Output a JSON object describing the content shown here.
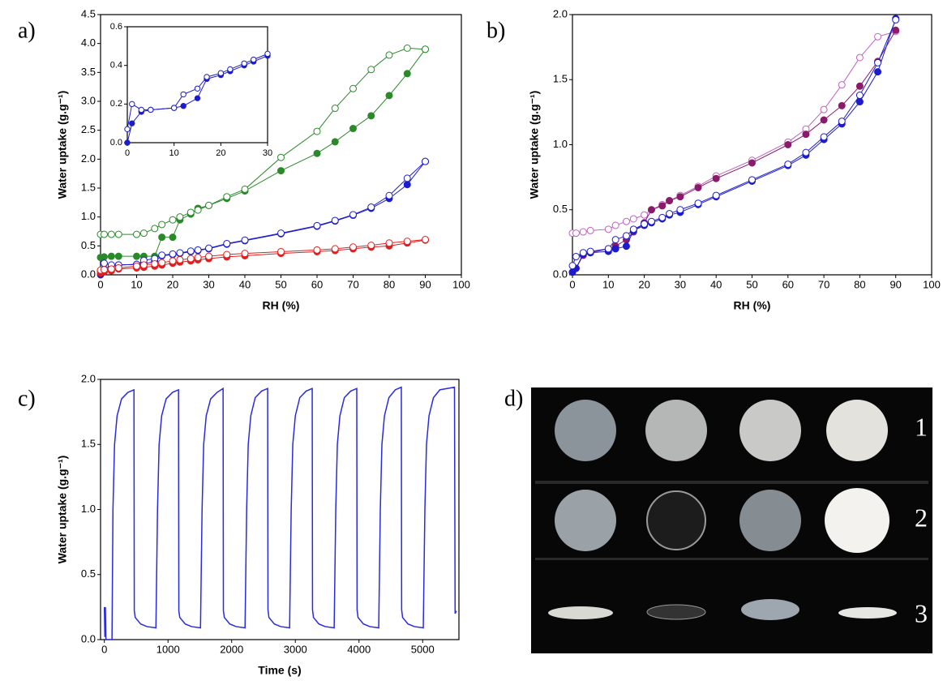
{
  "chart_data": [
    {
      "type": "line",
      "label": "a)",
      "xlabel": "RH (%)",
      "ylabel": "Water uptake (g.g⁻¹)",
      "x": [
        0,
        1,
        3,
        5,
        10,
        12,
        15,
        17,
        20,
        22,
        25,
        27,
        30,
        35,
        40,
        50,
        60,
        65,
        70,
        75,
        80,
        85,
        90
      ],
      "series": [
        {
          "color": "#2a8a2a",
          "marker": "filled",
          "values": [
            0.3,
            0.31,
            0.32,
            0.32,
            0.32,
            0.32,
            0.32,
            0.65,
            0.65,
            0.95,
            1.05,
            1.15,
            1.2,
            1.32,
            1.45,
            1.8,
            2.1,
            2.3,
            2.53,
            2.75,
            3.1,
            3.48,
            3.9
          ]
        },
        {
          "color": "#2a8a2a",
          "marker": "open",
          "values": [
            0.7,
            0.7,
            0.7,
            0.7,
            0.7,
            0.72,
            0.8,
            0.87,
            0.95,
            1.0,
            1.08,
            1.12,
            1.2,
            1.35,
            1.48,
            2.03,
            2.48,
            2.88,
            3.22,
            3.55,
            3.8,
            3.92,
            3.9
          ]
        },
        {
          "color": "#1c1ccc",
          "marker": "filled",
          "values": [
            0.0,
            0.1,
            0.16,
            0.17,
            0.18,
            0.19,
            0.23,
            0.33,
            0.35,
            0.37,
            0.4,
            0.42,
            0.45,
            0.53,
            0.59,
            0.71,
            0.84,
            0.93,
            1.03,
            1.15,
            1.32,
            1.56,
            1.96
          ]
        },
        {
          "color": "#1c1ccc",
          "marker": "open",
          "values": [
            0.07,
            0.2,
            0.17,
            0.17,
            0.18,
            0.25,
            0.28,
            0.34,
            0.36,
            0.38,
            0.41,
            0.43,
            0.46,
            0.54,
            0.6,
            0.72,
            0.85,
            0.94,
            1.04,
            1.17,
            1.37,
            1.67,
            1.96
          ]
        },
        {
          "color": "#e02020",
          "marker": "filled",
          "values": [
            0.03,
            0.05,
            0.07,
            0.1,
            0.12,
            0.13,
            0.15,
            0.17,
            0.2,
            0.22,
            0.24,
            0.26,
            0.28,
            0.31,
            0.33,
            0.37,
            0.4,
            0.42,
            0.45,
            0.48,
            0.5,
            0.55,
            0.6
          ]
        },
        {
          "color": "#e02020",
          "marker": "open",
          "values": [
            0.08,
            0.09,
            0.1,
            0.12,
            0.15,
            0.17,
            0.19,
            0.21,
            0.24,
            0.26,
            0.28,
            0.3,
            0.32,
            0.35,
            0.37,
            0.4,
            0.43,
            0.45,
            0.48,
            0.51,
            0.55,
            0.58,
            0.61
          ]
        }
      ],
      "xlim": [
        0,
        100
      ],
      "ylim": [
        0,
        4.5
      ],
      "xticks": [
        0,
        10,
        20,
        30,
        40,
        50,
        60,
        70,
        80,
        90,
        100
      ],
      "yticks": [
        {
          "value": 0,
          "label": "0.0"
        },
        0.5,
        {
          "value": 1,
          "label": "1.0"
        },
        1.5,
        {
          "value": 2,
          "label": "2.0"
        },
        2.5,
        {
          "value": 3,
          "label": "3.0"
        },
        3.5,
        {
          "value": 4,
          "label": "4.0"
        },
        4.5
      ]
    },
    {
      "type": "line",
      "x": [
        0,
        1,
        3,
        5,
        10,
        12,
        15,
        17,
        20,
        22,
        25,
        27,
        30
      ],
      "series": [
        {
          "color": "#1c1ccc",
          "marker": "filled",
          "values": [
            0.0,
            0.1,
            0.16,
            0.17,
            0.18,
            0.19,
            0.23,
            0.33,
            0.35,
            0.37,
            0.4,
            0.42,
            0.45
          ]
        },
        {
          "color": "#1c1ccc",
          "marker": "open",
          "values": [
            0.07,
            0.2,
            0.17,
            0.17,
            0.18,
            0.25,
            0.28,
            0.34,
            0.36,
            0.38,
            0.41,
            0.43,
            0.46
          ]
        }
      ],
      "xlim": [
        0,
        30
      ],
      "ylim": [
        0,
        0.6
      ],
      "xticks": [
        0,
        10,
        20,
        30
      ],
      "yticks": [
        {
          "value": 0,
          "label": "0.0"
        },
        0.2,
        0.4,
        0.6
      ]
    },
    {
      "type": "line",
      "label": "b)",
      "xlabel": "RH (%)",
      "ylabel": "Water uptake (g.g⁻¹)",
      "x": [
        0,
        1,
        3,
        5,
        10,
        12,
        15,
        17,
        20,
        22,
        25,
        27,
        30,
        35,
        40,
        50,
        60,
        65,
        70,
        75,
        80,
        85,
        90
      ],
      "series": [
        {
          "color": "#c060c0",
          "marker": "open",
          "values": [
            0.32,
            0.32,
            0.33,
            0.34,
            0.35,
            0.38,
            0.41,
            0.43,
            0.46,
            0.5,
            0.54,
            0.57,
            0.61,
            0.68,
            0.76,
            0.88,
            1.02,
            1.12,
            1.27,
            1.46,
            1.67,
            1.83,
            1.87
          ]
        },
        {
          "color": "#8b1a6b",
          "marker": "filled",
          "values": [
            0.02,
            0.05,
            0.15,
            0.17,
            0.2,
            0.22,
            0.27,
            0.33,
            0.4,
            0.5,
            0.53,
            0.57,
            0.6,
            0.67,
            0.74,
            0.86,
            1.0,
            1.08,
            1.19,
            1.3,
            1.45,
            1.64,
            1.88
          ]
        },
        {
          "color": "#1c1ccc",
          "marker": "filled",
          "values": [
            0.02,
            0.05,
            0.16,
            0.17,
            0.18,
            0.2,
            0.22,
            0.34,
            0.38,
            0.4,
            0.43,
            0.46,
            0.48,
            0.54,
            0.6,
            0.72,
            0.84,
            0.92,
            1.04,
            1.16,
            1.33,
            1.56,
            1.97
          ]
        },
        {
          "color": "#1c1ccc",
          "marker": "open",
          "values": [
            0.07,
            0.14,
            0.17,
            0.18,
            0.2,
            0.27,
            0.3,
            0.35,
            0.39,
            0.41,
            0.44,
            0.47,
            0.5,
            0.55,
            0.61,
            0.73,
            0.85,
            0.94,
            1.06,
            1.18,
            1.38,
            1.63,
            1.96
          ]
        }
      ],
      "xlim": [
        0,
        100
      ],
      "ylim": [
        0,
        2
      ],
      "xticks": [
        0,
        10,
        20,
        30,
        40,
        50,
        60,
        70,
        80,
        90,
        100
      ],
      "yticks": [
        {
          "value": 0,
          "label": "0.0"
        },
        0.5,
        {
          "value": 1,
          "label": "1.0"
        },
        1.5,
        {
          "value": 2,
          "label": "2.0"
        }
      ]
    },
    {
      "type": "line",
      "label": "c)",
      "xlabel": "Time (s)",
      "ylabel": "Water uptake (g.g⁻¹)",
      "x": [
        0,
        8,
        16,
        25,
        120,
        135,
        160,
        200,
        270,
        370,
        465,
        470,
        485,
        570,
        670,
        810,
        835,
        860,
        900,
        970,
        1070,
        1165,
        1170,
        1185,
        1270,
        1370,
        1510,
        1535,
        1560,
        1600,
        1670,
        1770,
        1865,
        1870,
        1885,
        1970,
        2070,
        2210,
        2235,
        2260,
        2300,
        2370,
        2470,
        2565,
        2570,
        2585,
        2670,
        2770,
        2910,
        2935,
        2960,
        3000,
        3070,
        3170,
        3265,
        3270,
        3285,
        3370,
        3470,
        3610,
        3635,
        3660,
        3700,
        3770,
        3870,
        3965,
        3970,
        3985,
        4070,
        4170,
        4310,
        4335,
        4360,
        4400,
        4470,
        4570,
        4665,
        4670,
        4685,
        4770,
        4870,
        5010,
        5035,
        5060,
        5100,
        5170,
        5270,
        5500,
        5510,
        5530
      ],
      "series": [
        {
          "color": "#2a2ae0",
          "values": [
            0.25,
            0.02,
            0.25,
            0,
            0,
            1.0,
            1.5,
            1.72,
            1.85,
            1.9,
            1.92,
            0.22,
            0.17,
            0.12,
            0.1,
            0.09,
            1.0,
            1.5,
            1.72,
            1.85,
            1.9,
            1.92,
            0.22,
            0.17,
            0.12,
            0.1,
            0.09,
            1.0,
            1.5,
            1.72,
            1.85,
            1.9,
            1.93,
            0.22,
            0.17,
            0.12,
            0.1,
            0.09,
            1.0,
            1.5,
            1.72,
            1.86,
            1.91,
            1.93,
            0.23,
            0.17,
            0.12,
            0.1,
            0.09,
            1.0,
            1.5,
            1.72,
            1.86,
            1.91,
            1.93,
            0.23,
            0.17,
            0.12,
            0.1,
            0.09,
            1.0,
            1.5,
            1.72,
            1.86,
            1.91,
            1.93,
            0.23,
            0.17,
            0.12,
            0.1,
            0.09,
            1.0,
            1.5,
            1.72,
            1.86,
            1.92,
            1.94,
            0.23,
            0.17,
            0.12,
            0.1,
            0.09,
            1.0,
            1.5,
            1.72,
            1.86,
            1.92,
            1.94,
            0.2,
            0.22
          ]
        }
      ],
      "xlim": [
        -60,
        5570
      ],
      "ylim": [
        0,
        2
      ],
      "xticks": [
        0,
        1000,
        2000,
        3000,
        4000,
        5000
      ],
      "yticks": [
        {
          "value": 0,
          "label": "0.0"
        },
        0.5,
        {
          "value": 1,
          "label": "1.0"
        },
        1.5,
        {
          "value": 2,
          "label": "2.0"
        }
      ]
    }
  ],
  "photo": {
    "label": "d)",
    "row_labels": [
      "1",
      "2",
      "3"
    ]
  }
}
